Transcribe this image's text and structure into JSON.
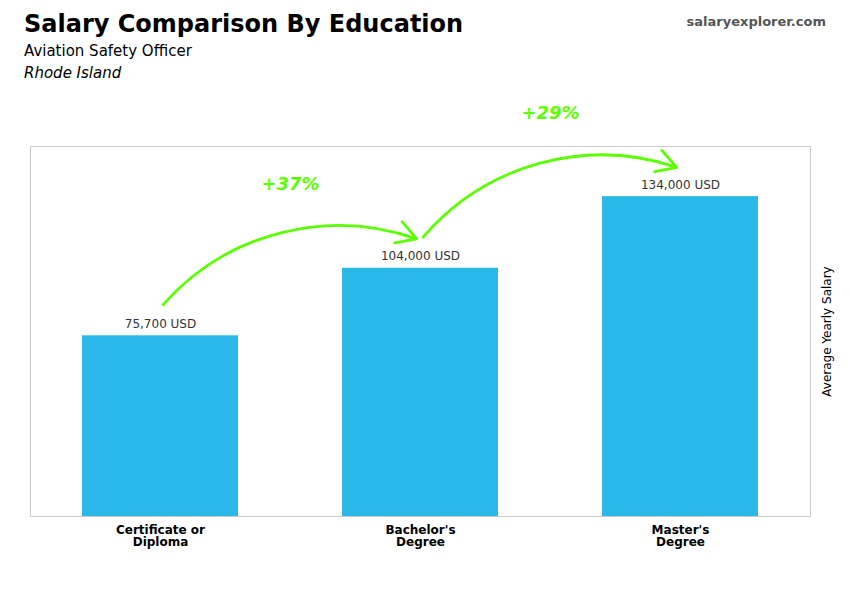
{
  "chart_data": {
    "type": "bar",
    "title": "Salary Comparison By Education",
    "subtitle": [
      "Aviation Safety Officer",
      "Rhode Island"
    ],
    "ylabel": "Average Yearly Salary",
    "categories": [
      "Certificate or\nDiploma",
      "Bachelor's\nDegree",
      "Master's\nDegree"
    ],
    "values": [
      75700,
      104000,
      134000
    ],
    "value_labels": [
      "75,700 USD",
      "104,000 USD",
      "134,000 USD"
    ],
    "data_labels": true,
    "color": "#29b8e8",
    "ylim": [
      0,
      155000
    ],
    "yticks": [],
    "tick_labels": "x",
    "grid": false,
    "annotations": [
      {
        "text": "+37%",
        "from": "Certificate or\nDiploma",
        "to": "Bachelor's\nDegree",
        "color": "#5aff00"
      },
      {
        "text": "+29%",
        "from": "Bachelor's\nDegree",
        "to": "Master's\nDegree",
        "color": "#5aff00"
      },
      {
        "text": "salaryexplorer.com"
      }
    ]
  }
}
